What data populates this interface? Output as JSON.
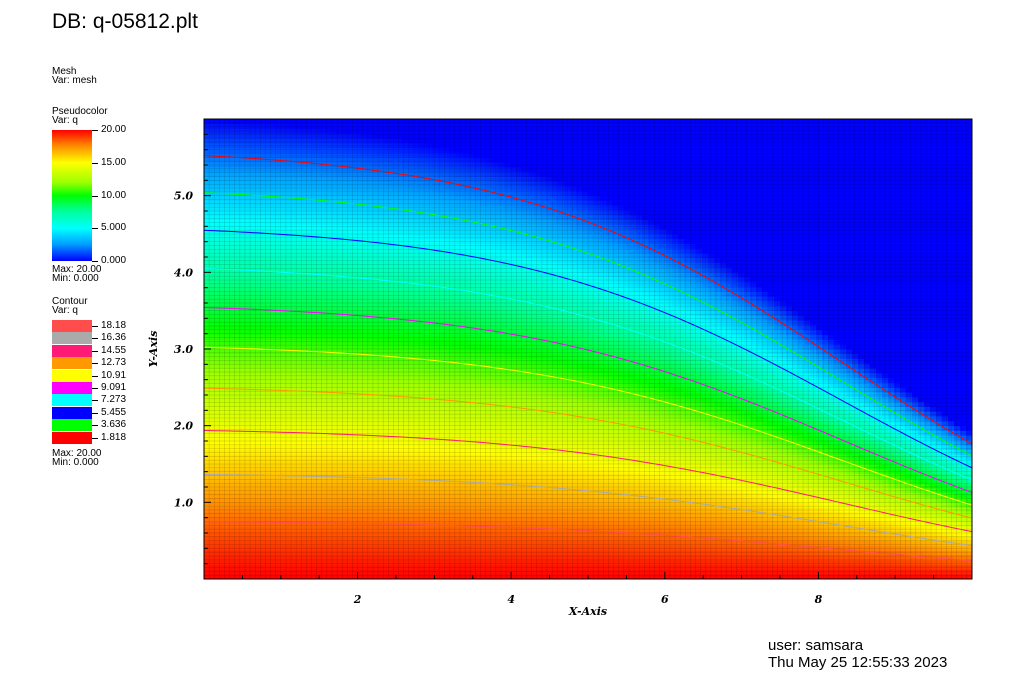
{
  "header": {
    "title": "DB: q-05812.plt"
  },
  "legend": {
    "mesh": {
      "label": "Mesh",
      "var": "Var: mesh"
    },
    "pseudocolor": {
      "label": "Pseudocolor",
      "var": "Var: q",
      "ticks": [
        "20.00",
        "15.00",
        "10.00",
        "5.000",
        "0.000"
      ],
      "max": "Max:  20.00",
      "min": "Min:  0.000"
    },
    "contour": {
      "label": "Contour",
      "var": "Var: q",
      "levels": [
        {
          "label": "18.18",
          "color": "#ff4d4d"
        },
        {
          "label": "16.36",
          "color": "#aaaaaa"
        },
        {
          "label": "14.55",
          "color": "#ff1a75"
        },
        {
          "label": "12.73",
          "color": "#ff9900"
        },
        {
          "label": "10.91",
          "color": "#ffff00"
        },
        {
          "label": "9.091",
          "color": "#ff00ff"
        },
        {
          "label": "7.273",
          "color": "#00ffff"
        },
        {
          "label": "5.455",
          "color": "#0000ff"
        },
        {
          "label": "3.636",
          "color": "#00ff00"
        },
        {
          "label": "1.818",
          "color": "#ff0000"
        }
      ],
      "max": "Max:  20.00",
      "min": "Min:  0.000"
    }
  },
  "footer": {
    "user": "user: samsara",
    "date": "Thu May 25 12:55:33 2023"
  },
  "chart_data": {
    "type": "heatmap",
    "xlabel": "X-Axis",
    "ylabel": "Y-Axis",
    "xlim": [
      0,
      10
    ],
    "ylim": [
      0,
      6
    ],
    "x_ticks": [
      "2",
      "4",
      "6",
      "8"
    ],
    "y_ticks": [
      "1.0",
      "2.0",
      "3.0",
      "4.0",
      "5.0"
    ],
    "var": "q",
    "value_range": [
      0,
      20
    ],
    "contour_lines": [
      {
        "level": 18.18,
        "color": "#ff4d4d",
        "y_at_left": 0.08
      },
      {
        "level": 16.36,
        "color": "#aaaaaa",
        "y_at_left": 1.1
      },
      {
        "level": 14.55,
        "color": "#ff1a75",
        "y_at_left": 1.65
      },
      {
        "level": 12.73,
        "color": "#ff9900",
        "y_at_left": 2.2
      },
      {
        "level": 10.91,
        "color": "#ffff00",
        "y_at_left": 2.75
      },
      {
        "level": 9.091,
        "color": "#ff00ff",
        "y_at_left": 3.3
      },
      {
        "level": 7.273,
        "color": "#00ffff",
        "y_at_left": 3.85
      },
      {
        "level": 5.455,
        "color": "#0000ff",
        "y_at_left": 4.4
      },
      {
        "level": 3.636,
        "color": "#00ff00",
        "y_at_left": 4.95
      },
      {
        "level": 1.818,
        "color": "#ff0000",
        "y_at_left": 5.5
      }
    ],
    "convergence_point": [
      10,
      6
    ]
  }
}
